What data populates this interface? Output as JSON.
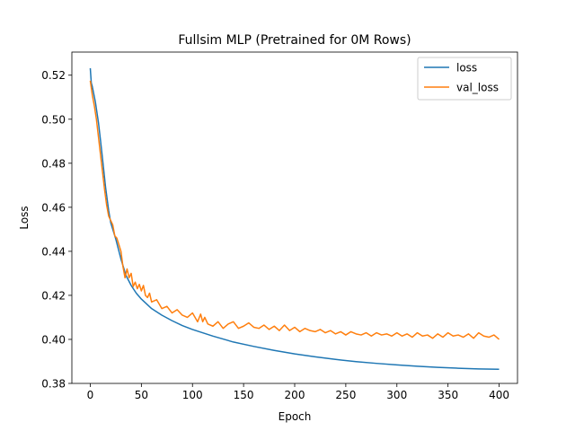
{
  "chart_data": {
    "type": "line",
    "title": "Fullsim MLP (Pretrained for 0M Rows)",
    "xlabel": "Epoch",
    "ylabel": "Loss",
    "xlim": [
      -18,
      418
    ],
    "ylim": [
      0.38,
      0.5305
    ],
    "xticks": [
      0,
      50,
      100,
      150,
      200,
      250,
      300,
      350,
      400
    ],
    "yticks": [
      0.38,
      0.4,
      0.42,
      0.44,
      0.46,
      0.48,
      0.5,
      0.52
    ],
    "ytick_labels": [
      "0.38",
      "0.40",
      "0.42",
      "0.44",
      "0.46",
      "0.48",
      "0.50",
      "0.52"
    ],
    "grid": false,
    "legend": "top-right",
    "colors": {
      "loss": "#1f77b4",
      "val_loss": "#ff7f0e"
    },
    "series": [
      {
        "name": "loss",
        "x": [
          0,
          1,
          2,
          3,
          5,
          8,
          10,
          12,
          15,
          18,
          20,
          25,
          30,
          35,
          40,
          45,
          50,
          60,
          70,
          80,
          90,
          100,
          120,
          140,
          160,
          180,
          200,
          220,
          240,
          260,
          280,
          300,
          320,
          340,
          360,
          380,
          400
        ],
        "values": [
          0.5232,
          0.5165,
          0.5148,
          0.5125,
          0.5078,
          0.4985,
          0.4905,
          0.482,
          0.469,
          0.4585,
          0.453,
          0.4455,
          0.4365,
          0.429,
          0.4245,
          0.421,
          0.4183,
          0.414,
          0.411,
          0.4085,
          0.4063,
          0.4045,
          0.4015,
          0.3988,
          0.3968,
          0.395,
          0.3934,
          0.3921,
          0.3909,
          0.3899,
          0.3891,
          0.3884,
          0.3878,
          0.3873,
          0.3869,
          0.3866,
          0.3864
        ]
      },
      {
        "name": "val_loss",
        "x": [
          0,
          2,
          4,
          6,
          8,
          10,
          12,
          14,
          16,
          18,
          20,
          22,
          24,
          26,
          28,
          30,
          32,
          34,
          36,
          38,
          40,
          42,
          44,
          46,
          48,
          50,
          52,
          54,
          56,
          58,
          60,
          65,
          70,
          75,
          80,
          85,
          90,
          95,
          100,
          105,
          108,
          110,
          112,
          115,
          120,
          125,
          130,
          135,
          140,
          145,
          150,
          155,
          160,
          165,
          170,
          175,
          180,
          185,
          190,
          195,
          200,
          205,
          210,
          215,
          220,
          225,
          230,
          235,
          240,
          245,
          250,
          255,
          260,
          265,
          270,
          275,
          280,
          285,
          290,
          295,
          300,
          305,
          310,
          315,
          320,
          325,
          330,
          335,
          340,
          345,
          350,
          355,
          360,
          365,
          370,
          375,
          380,
          385,
          390,
          395,
          400
        ],
        "values": [
          0.5175,
          0.511,
          0.506,
          0.5,
          0.492,
          0.484,
          0.476,
          0.468,
          0.461,
          0.456,
          0.454,
          0.452,
          0.447,
          0.446,
          0.443,
          0.44,
          0.433,
          0.428,
          0.432,
          0.428,
          0.43,
          0.424,
          0.426,
          0.423,
          0.425,
          0.422,
          0.4245,
          0.42,
          0.419,
          0.421,
          0.417,
          0.418,
          0.414,
          0.415,
          0.412,
          0.4135,
          0.411,
          0.41,
          0.412,
          0.408,
          0.4115,
          0.408,
          0.41,
          0.407,
          0.406,
          0.408,
          0.405,
          0.407,
          0.408,
          0.405,
          0.406,
          0.4075,
          0.4055,
          0.405,
          0.4065,
          0.4045,
          0.406,
          0.404,
          0.4065,
          0.404,
          0.4055,
          0.4035,
          0.405,
          0.404,
          0.4035,
          0.4045,
          0.403,
          0.404,
          0.4025,
          0.4035,
          0.402,
          0.4035,
          0.4025,
          0.402,
          0.403,
          0.4015,
          0.403,
          0.402,
          0.4025,
          0.4015,
          0.403,
          0.4015,
          0.4025,
          0.401,
          0.403,
          0.4015,
          0.402,
          0.4005,
          0.4025,
          0.401,
          0.403,
          0.4015,
          0.402,
          0.401,
          0.4025,
          0.4005,
          0.403,
          0.4015,
          0.401,
          0.402,
          0.4
        ]
      }
    ]
  }
}
